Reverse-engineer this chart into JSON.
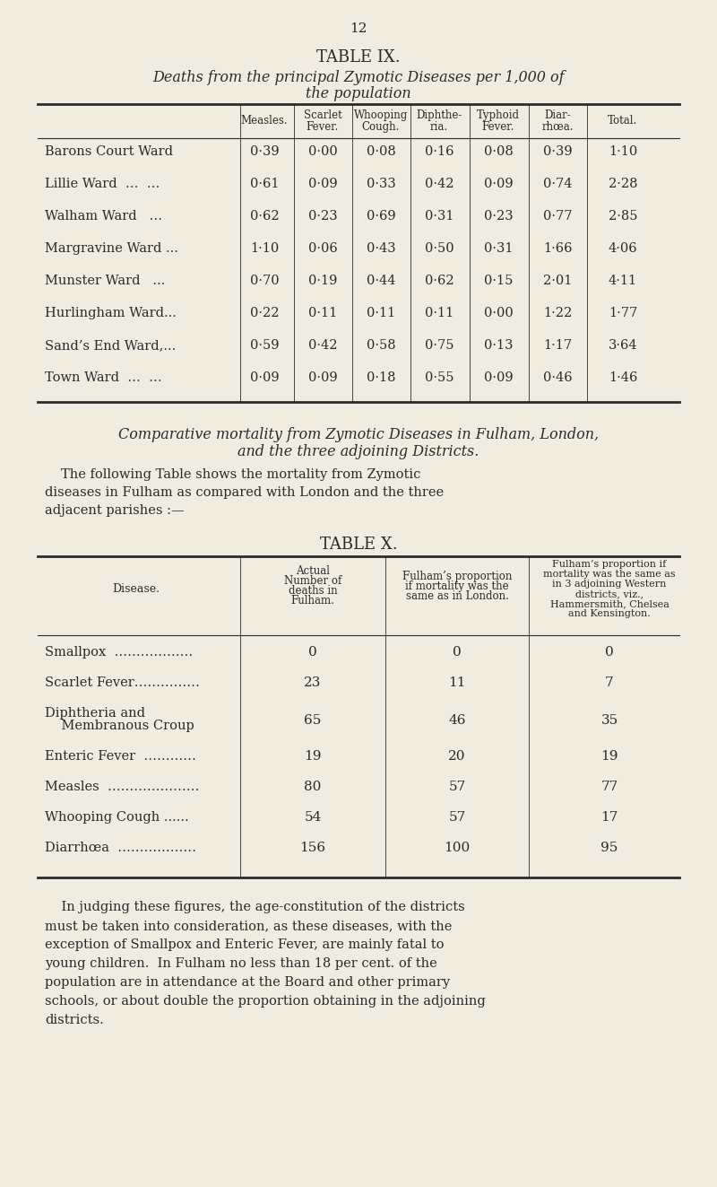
{
  "page_number": "12",
  "bg_color": "#f0ece0",
  "text_color": "#2a2a2a",
  "table1": {
    "title": "TABLE IX.",
    "subtitle_line1": "Deaths from the principal Zymotic Diseases per 1,000 of",
    "subtitle_line2": "the population",
    "headers": [
      [
        "Measles.",
        295
      ],
      [
        "Scarlet\nFever.",
        360
      ],
      [
        "Whooping\nCough.",
        425
      ],
      [
        "Diphthe-\nria.",
        490
      ],
      [
        "Typhoid\nFever.",
        556
      ],
      [
        "Diar-\nrhœa.",
        622
      ],
      [
        "Total.",
        695
      ]
    ],
    "col_dividers": [
      268,
      328,
      393,
      458,
      524,
      590,
      655
    ],
    "data_col_centers": [
      295,
      360,
      425,
      490,
      556,
      622,
      695
    ],
    "rows": [
      [
        "Barons Court Ward",
        "0·39",
        "0·00",
        "0·08",
        "0·16",
        "0·08",
        "0·39",
        "1·10"
      ],
      [
        "Lillie Ward  …  …",
        "0·61",
        "0·09",
        "0·33",
        "0·42",
        "0·09",
        "0·74",
        "2·28"
      ],
      [
        "Walham Ward   …",
        "0·62",
        "0·23",
        "0·69",
        "0·31",
        "0·23",
        "0·77",
        "2·85"
      ],
      [
        "Margravine Ward ...",
        "1·10",
        "0·06",
        "0·43",
        "0·50",
        "0·31",
        "1·66",
        "4·06"
      ],
      [
        "Munster Ward   ...",
        "0·70",
        "0·19",
        "0·44",
        "0·62",
        "0·15",
        "2·01",
        "4·11"
      ],
      [
        "Hurlingham Ward...",
        "0·22",
        "0·11",
        "0·11",
        "0·11",
        "0·00",
        "1·22",
        "1·77"
      ],
      [
        "Sand’s End Ward,...",
        "0·59",
        "0·42",
        "0·58",
        "0·75",
        "0·13",
        "1·17",
        "3·64"
      ],
      [
        "Town Ward  …  …",
        "0·09",
        "0·09",
        "0·18",
        "0·55",
        "0·09",
        "0·46",
        "1·46"
      ]
    ]
  },
  "italic_heading_line1": "Comparative mortality from Zymotic Diseases in Fulham, London,",
  "italic_heading_line2": "and the three adjoining Districts.",
  "paragraph_lines": [
    "The following Table shows the mortality from Zymotic",
    "diseases in Fulham as compared with London and the three",
    "adjacent parishes :—"
  ],
  "table2": {
    "title": "TABLE X.",
    "col_dividers": [
      268,
      430,
      590
    ],
    "header_centers": [
      152,
      349,
      510,
      680
    ],
    "header_texts": [
      "Disease.",
      "Actual\nNumber of\ndeaths in\nFulham.",
      "Fulham’s proportion\nif mortality was the\nsame as in London.",
      "Fulham’s proportion if\nmortality was the same as\nin 3 adjoining Western\ndistricts, viz.,\nHammersmith, Chelsea\nand Kensington."
    ],
    "data_col_centers": [
      349,
      510,
      680
    ],
    "rows": [
      [
        "Smallpox  ………………",
        "0",
        "0",
        "0"
      ],
      [
        "Scarlet Fever……………",
        "23",
        "11",
        "7"
      ],
      [
        "Diphtheria and\n    Membranous Croup",
        "65",
        "46",
        "35"
      ],
      [
        "Enteric Fever  …………",
        "19",
        "20",
        "19"
      ],
      [
        "Measles  …………………",
        "80",
        "57",
        "77"
      ],
      [
        "Whooping Cough ......",
        "54",
        "57",
        "17"
      ],
      [
        "Diarrhœa  ………………",
        "156",
        "100",
        "95"
      ]
    ]
  },
  "footer_lines": [
    "    In judging these figures, the age-constitution of the districts",
    "must be taken into consideration, as these diseases, with the",
    "exception of Smallpox and Enteric Fever, are mainly fatal to",
    "young children.  In Fulham no less than 18 per cent. of the",
    "population are in attendance at the Board and other primary",
    "schools, or about double the proportion obtaining in the adjoining",
    "districts."
  ]
}
